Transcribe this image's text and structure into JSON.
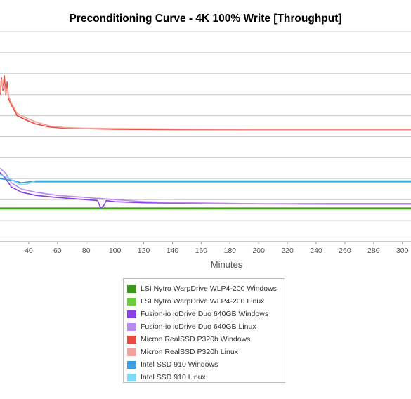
{
  "chart_data": {
    "type": "line",
    "title": "Preconditioning Curve - 4K 100% Write [Throughput]",
    "xlabel": "Minutes",
    "ylabel": "",
    "xlim": [
      20,
      306
    ],
    "ylim": [
      0,
      10
    ],
    "x_ticks": [
      40,
      60,
      80,
      100,
      120,
      140,
      160,
      180,
      200,
      220,
      240,
      260,
      280,
      300
    ],
    "grid": true,
    "legend_position": "bottom",
    "series": [
      {
        "name": "LSI Nytro WarpDrive WLP4-200 Windows",
        "color": "#3a9a14",
        "points": [
          [
            20,
            1.6
          ],
          [
            100,
            1.6
          ],
          [
            200,
            1.6
          ],
          [
            306,
            1.6
          ]
        ]
      },
      {
        "name": "LSI Nytro WarpDrive WLP4-200 Linux",
        "color": "#6ccd3b",
        "points": [
          [
            20,
            1.55
          ],
          [
            100,
            1.55
          ],
          [
            200,
            1.55
          ],
          [
            306,
            1.55
          ]
        ]
      },
      {
        "name": "Fusion-io ioDrive Duo 640GB Windows",
        "color": "#8a3fe6",
        "points": [
          [
            20,
            3.3
          ],
          [
            24,
            3.0
          ],
          [
            28,
            2.6
          ],
          [
            35,
            2.35
          ],
          [
            45,
            2.2
          ],
          [
            60,
            2.1
          ],
          [
            80,
            2.0
          ],
          [
            88,
            1.95
          ],
          [
            90,
            1.6
          ],
          [
            92,
            1.7
          ],
          [
            94,
            1.95
          ],
          [
            100,
            1.9
          ],
          [
            120,
            1.85
          ],
          [
            150,
            1.83
          ],
          [
            200,
            1.8
          ],
          [
            250,
            1.8
          ],
          [
            306,
            1.8
          ]
        ]
      },
      {
        "name": "Fusion-io ioDrive Duo 640GB Linux",
        "color": "#b98bf0",
        "points": [
          [
            20,
            3.5
          ],
          [
            24,
            3.25
          ],
          [
            28,
            2.8
          ],
          [
            35,
            2.5
          ],
          [
            45,
            2.35
          ],
          [
            60,
            2.2
          ],
          [
            80,
            2.1
          ],
          [
            100,
            2.0
          ],
          [
            120,
            1.9
          ],
          [
            150,
            1.85
          ],
          [
            200,
            1.8
          ],
          [
            250,
            1.78
          ],
          [
            306,
            1.78
          ]
        ]
      },
      {
        "name": "Micron RealSSD P320h Windows",
        "color": "#e84a40",
        "points": [
          [
            20,
            7.0
          ],
          [
            21,
            7.8
          ],
          [
            22,
            7.2
          ],
          [
            23,
            7.9
          ],
          [
            24,
            7.0
          ],
          [
            25,
            7.6
          ],
          [
            26,
            6.8
          ],
          [
            28,
            6.5
          ],
          [
            32,
            6.0
          ],
          [
            38,
            5.8
          ],
          [
            45,
            5.6
          ],
          [
            55,
            5.45
          ],
          [
            65,
            5.4
          ],
          [
            80,
            5.38
          ],
          [
            100,
            5.35
          ],
          [
            150,
            5.33
          ],
          [
            200,
            5.33
          ],
          [
            250,
            5.33
          ],
          [
            306,
            5.33
          ]
        ]
      },
      {
        "name": "Micron RealSSD P320h Linux",
        "color": "#f5a19b",
        "points": [
          [
            20,
            7.1
          ],
          [
            21,
            7.7
          ],
          [
            22,
            7.3
          ],
          [
            23,
            7.5
          ],
          [
            24,
            7.0
          ],
          [
            25,
            7.3
          ],
          [
            26,
            6.9
          ],
          [
            28,
            6.6
          ],
          [
            32,
            6.1
          ],
          [
            38,
            5.9
          ],
          [
            45,
            5.7
          ],
          [
            55,
            5.5
          ],
          [
            65,
            5.43
          ],
          [
            80,
            5.4
          ],
          [
            100,
            5.38
          ],
          [
            150,
            5.36
          ],
          [
            200,
            5.35
          ],
          [
            250,
            5.35
          ],
          [
            306,
            5.35
          ]
        ]
      },
      {
        "name": "Intel SSD 910 Windows",
        "color": "#3a9fdd",
        "points": [
          [
            20,
            3.0
          ],
          [
            25,
            2.95
          ],
          [
            30,
            2.9
          ],
          [
            35,
            2.8
          ],
          [
            40,
            2.85
          ],
          [
            50,
            2.85
          ],
          [
            100,
            2.85
          ],
          [
            150,
            2.85
          ],
          [
            200,
            2.85
          ],
          [
            250,
            2.85
          ],
          [
            306,
            2.85
          ]
        ]
      },
      {
        "name": "Intel SSD 910 Linux",
        "color": "#7fd9f7",
        "points": [
          [
            20,
            3.2
          ],
          [
            24,
            3.1
          ],
          [
            28,
            2.95
          ],
          [
            33,
            2.75
          ],
          [
            37,
            2.7
          ],
          [
            45,
            2.9
          ],
          [
            60,
            2.9
          ],
          [
            100,
            2.9
          ],
          [
            150,
            2.9
          ],
          [
            200,
            2.9
          ],
          [
            250,
            2.9
          ],
          [
            306,
            2.9
          ]
        ]
      }
    ]
  }
}
